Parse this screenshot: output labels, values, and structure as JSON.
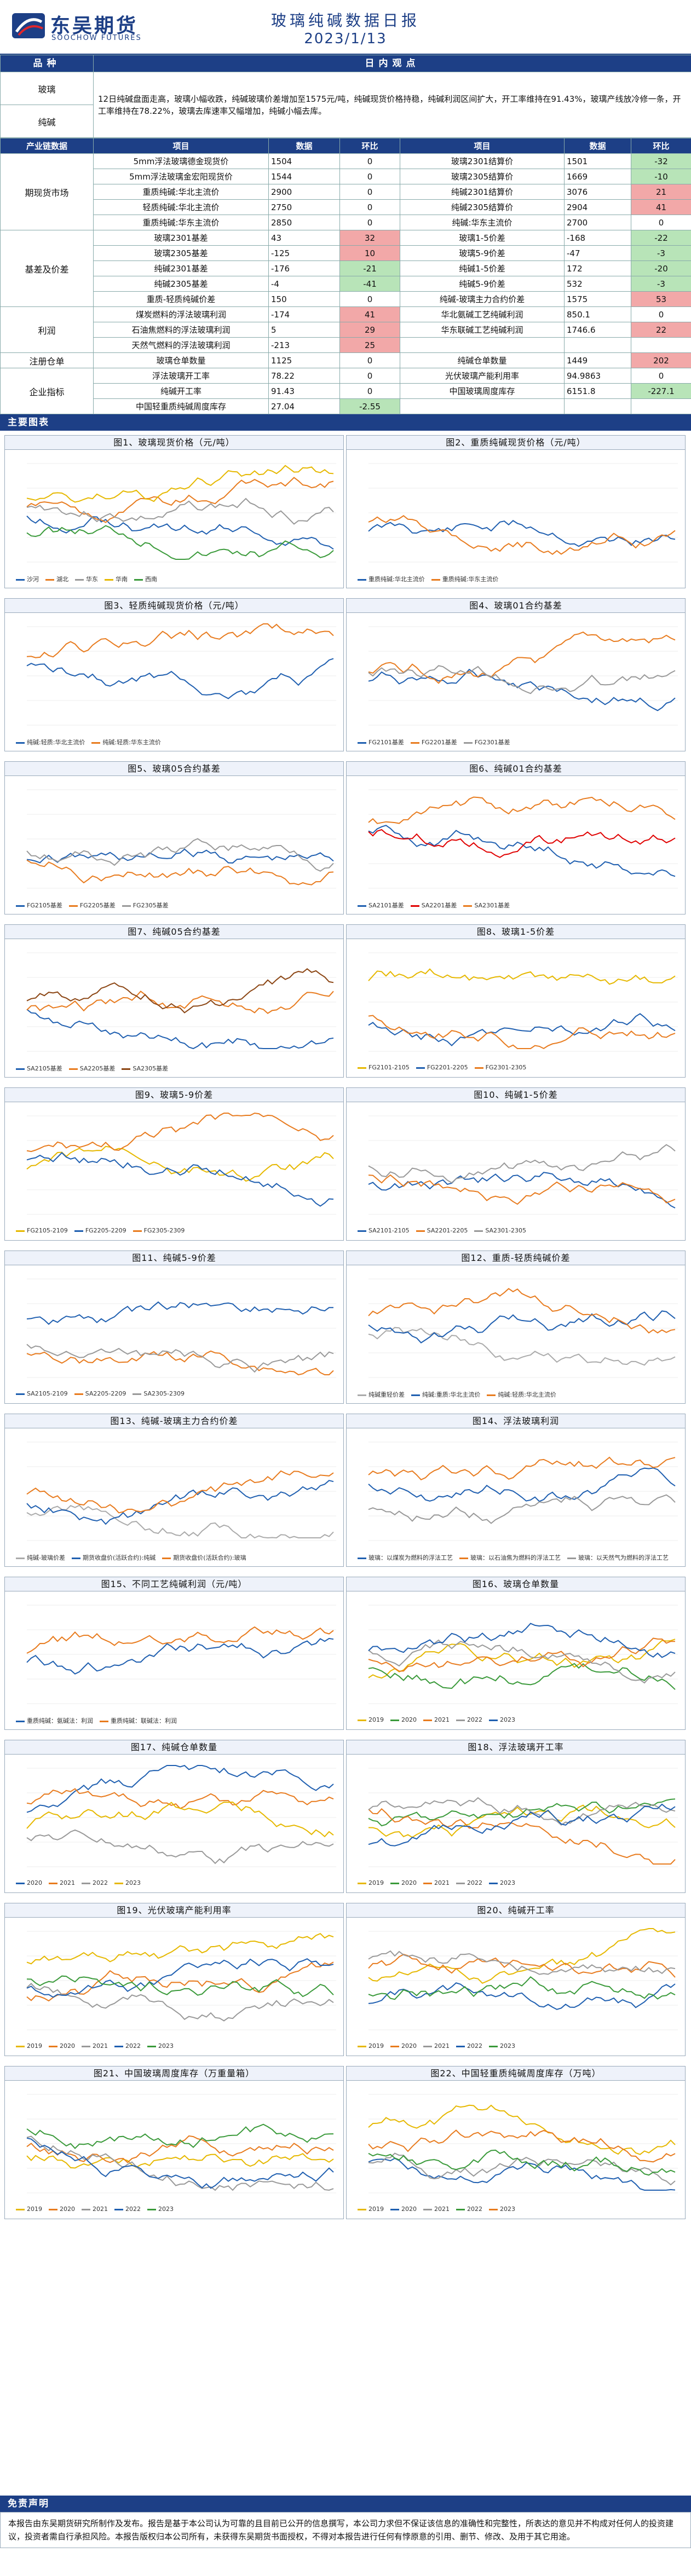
{
  "header": {
    "logo_cn": "东吴期货",
    "logo_en": "SOOCHOW FUTURES",
    "title": "玻璃纯碱数据日报",
    "date": "2023/1/13"
  },
  "varieties": {
    "bar_left": "品种",
    "bar_center": "日内观点",
    "glass_label": "玻璃",
    "soda_label": "纯碱",
    "view_text": "12日纯碱盘面走高，玻璃小幅收跌，纯碱玻璃价差增加至1575元/吨，纯碱现货价格持稳，纯碱利润区间扩大，开工率维持在91.43%，玻璃产线放冷修一条，开工率维持在78.22%，玻璃去库速率又幅增加，纯碱小幅去库。"
  },
  "table": {
    "headers": [
      "产业链数据",
      "项目",
      "数据",
      "环比",
      "项目",
      "数据",
      "环比"
    ],
    "groups": [
      {
        "label": "期现货市场",
        "rows": [
          {
            "i1": "5mm浮法玻璃德金现货价",
            "v1": "1504",
            "c1": "0",
            "c1s": "",
            "i2": "玻璃2301结算价",
            "v2": "1501",
            "c2": "-32",
            "c2s": "grn"
          },
          {
            "i1": "5mm浮法玻璃金宏阳现货价",
            "v1": "1544",
            "c1": "0",
            "c1s": "",
            "i2": "玻璃2305结算价",
            "v2": "1669",
            "c2": "-10",
            "c2s": "grn"
          },
          {
            "i1": "重质纯碱:华北主流价",
            "v1": "2900",
            "c1": "0",
            "c1s": "",
            "i2": "纯碱2301结算价",
            "v2": "3076",
            "c2": "21",
            "c2s": "red"
          },
          {
            "i1": "轻质纯碱:华北主流价",
            "v1": "2750",
            "c1": "0",
            "c1s": "",
            "i2": "纯碱2305结算价",
            "v2": "2904",
            "c2": "41",
            "c2s": "red"
          },
          {
            "i1": "重质纯碱:华东主流价",
            "v1": "2850",
            "c1": "0",
            "c1s": "",
            "i2": "纯碱:华东主流价",
            "v2": "2700",
            "c2": "0",
            "c2s": ""
          }
        ]
      },
      {
        "label": "基差及价差",
        "rows": [
          {
            "i1": "玻璃2301基差",
            "v1": "43",
            "c1": "32",
            "c1s": "red",
            "i2": "玻璃1-5价差",
            "v2": "-168",
            "c2": "-22",
            "c2s": "grn"
          },
          {
            "i1": "玻璃2305基差",
            "v1": "-125",
            "c1": "10",
            "c1s": "red",
            "i2": "玻璃5-9价差",
            "v2": "-47",
            "c2": "-3",
            "c2s": "grn"
          },
          {
            "i1": "纯碱2301基差",
            "v1": "-176",
            "c1": "-21",
            "c1s": "grn",
            "i2": "纯碱1-5价差",
            "v2": "172",
            "c2": "-20",
            "c2s": "grn"
          },
          {
            "i1": "纯碱2305基差",
            "v1": "-4",
            "c1": "-41",
            "c1s": "grn",
            "i2": "纯碱5-9价差",
            "v2": "532",
            "c2": "-3",
            "c2s": "grn"
          },
          {
            "i1": "重质-轻质纯碱价差",
            "v1": "150",
            "c1": "0",
            "c1s": "",
            "i2": "纯碱-玻璃主力合约价差",
            "v2": "1575",
            "c2": "53",
            "c2s": "red"
          }
        ]
      },
      {
        "label": "利润",
        "rows": [
          {
            "i1": "煤炭燃料的浮法玻璃利润",
            "v1": "-174",
            "c1": "41",
            "c1s": "red",
            "i2": "华北氨碱工艺纯碱利润",
            "v2": "850.1",
            "c2": "0",
            "c2s": ""
          },
          {
            "i1": "石油焦燃料的浮法玻璃利润",
            "v1": "5",
            "c1": "29",
            "c1s": "red",
            "i2": "华东联碱工艺纯碱利润",
            "v2": "1746.6",
            "c2": "22",
            "c2s": "red"
          },
          {
            "i1": "天然气燃料的浮法玻璃利润",
            "v1": "-213",
            "c1": "25",
            "c1s": "red",
            "i2": "",
            "v2": "",
            "c2": "",
            "c2s": ""
          }
        ]
      },
      {
        "label": "注册仓单",
        "rows": [
          {
            "i1": "玻璃仓单数量",
            "v1": "1125",
            "c1": "0",
            "c1s": "",
            "i2": "纯碱仓单数量",
            "v2": "1449",
            "c2": "202",
            "c2s": "red"
          }
        ]
      },
      {
        "label": "企业指标",
        "rows": [
          {
            "i1": "浮法玻璃开工率",
            "v1": "78.22",
            "c1": "0",
            "c1s": "",
            "i2": "光伏玻璃产能利用率",
            "v2": "94.9863",
            "c2": "0",
            "c2s": ""
          },
          {
            "i1": "纯碱开工率",
            "v1": "91.43",
            "c1": "0",
            "c1s": "",
            "i2": "中国玻璃周度库存",
            "v2": "6151.8",
            "c2": "-227.1",
            "c2s": "grn"
          },
          {
            "i1": "中国轻重质纯碱周度库存",
            "v1": "27.04",
            "c1": "-2.55",
            "c1s": "grn",
            "i2": "",
            "v2": "",
            "c2": "",
            "c2s": ""
          }
        ]
      }
    ]
  },
  "charts_bar": "主要图表",
  "charts": [
    {
      "title": "图1、玻璃现货价格（元/吨）",
      "legend": [
        "沙河",
        "湖北",
        "华东",
        "华南",
        "西南"
      ],
      "colors": [
        "#1f5fb0",
        "#e87b1e",
        "#999999",
        "#e6b800",
        "#3a9a3a"
      ]
    },
    {
      "title": "图2、重质纯碱现货价格（元/吨）",
      "legend": [
        "重质纯碱:华北主流价",
        "重质纯碱:华东主流价"
      ],
      "colors": [
        "#1f5fb0",
        "#e87b1e"
      ]
    },
    {
      "title": "图3、轻质纯碱现货价格（元/吨）",
      "legend": [
        "纯碱:轻质:华北主流价",
        "纯碱:轻质:华东主流价"
      ],
      "colors": [
        "#1f5fb0",
        "#e87b1e"
      ]
    },
    {
      "title": "图4、玻璃01合约基差",
      "legend": [
        "FG2101基差",
        "FG2201基差",
        "FG2301基差"
      ],
      "colors": [
        "#1f5fb0",
        "#e87b1e",
        "#999999"
      ]
    },
    {
      "title": "图5、玻璃05合约基差",
      "legend": [
        "FG2105基差",
        "FG2205基差",
        "FG2305基差"
      ],
      "colors": [
        "#1f5fb0",
        "#e87b1e",
        "#999999"
      ]
    },
    {
      "title": "图6、纯碱01合约基差",
      "legend": [
        "SA2101基差",
        "SA2201基差",
        "SA2301基差"
      ],
      "colors": [
        "#1f5fb0",
        "#e00000",
        "#e87b1e"
      ]
    },
    {
      "title": "图7、纯碱05合约基差",
      "legend": [
        "SA2105基差",
        "SA2205基差",
        "SA2305基差"
      ],
      "colors": [
        "#1f5fb0",
        "#e87b1e",
        "#8b4513"
      ]
    },
    {
      "title": "图8、玻璃1-5价差",
      "legend": [
        "FG2101-2105",
        "FG2201-2205",
        "FG2301-2305"
      ],
      "colors": [
        "#e6b800",
        "#1f5fb0",
        "#e87b1e"
      ]
    },
    {
      "title": "图9、玻璃5-9价差",
      "legend": [
        "FG2105-2109",
        "FG2205-2209",
        "FG2305-2309"
      ],
      "colors": [
        "#e6b800",
        "#1f5fb0",
        "#e87b1e"
      ]
    },
    {
      "title": "图10、纯碱1-5价差",
      "legend": [
        "SA2101-2105",
        "SA2201-2205",
        "SA2301-2305"
      ],
      "colors": [
        "#1f5fb0",
        "#e87b1e",
        "#999999"
      ]
    },
    {
      "title": "图11、纯碱5-9价差",
      "legend": [
        "SA2105-2109",
        "SA2205-2209",
        "SA2305-2309"
      ],
      "colors": [
        "#1f5fb0",
        "#e87b1e",
        "#999999"
      ]
    },
    {
      "title": "图12、重质-轻质纯碱价差",
      "legend": [
        "纯碱重轻价差",
        "纯碱:重质:华北主流价",
        "纯碱:轻质:华北主流价"
      ],
      "colors": [
        "#aaaaaa",
        "#1f5fb0",
        "#e87b1e"
      ]
    },
    {
      "title": "图13、纯碱-玻璃主力合约价差",
      "legend": [
        "纯碱-玻璃价差",
        "期货收盘价(活跃合约):纯碱",
        "期货收盘价(活跃合约):玻璃"
      ],
      "colors": [
        "#aaaaaa",
        "#1f5fb0",
        "#e87b1e"
      ]
    },
    {
      "title": "图14、浮法玻璃利润",
      "legend": [
        "玻璃：以煤炭为燃料的浮法工艺",
        "玻璃：以石油焦为燃料的浮法工艺",
        "玻璃：以天然气为燃料的浮法工艺"
      ],
      "colors": [
        "#1f5fb0",
        "#e87b1e",
        "#999999"
      ]
    },
    {
      "title": "图15、不同工艺纯碱利润（元/吨）",
      "legend": [
        "重质纯碱：氨碱法：利润",
        "重质纯碱：联碱法：利润"
      ],
      "colors": [
        "#1f5fb0",
        "#e87b1e"
      ]
    },
    {
      "title": "图16、玻璃仓单数量",
      "legend": [
        "2019",
        "2020",
        "2021",
        "2022",
        "2023"
      ],
      "colors": [
        "#e6b800",
        "#3a9a3a",
        "#e87b1e",
        "#999999",
        "#1f5fb0"
      ]
    },
    {
      "title": "图17、纯碱仓单数量",
      "legend": [
        "2020",
        "2021",
        "2022",
        "2023"
      ],
      "colors": [
        "#1f5fb0",
        "#e87b1e",
        "#999999",
        "#e6b800"
      ]
    },
    {
      "title": "图18、浮法玻璃开工率",
      "legend": [
        "2019",
        "2020",
        "2021",
        "2022",
        "2023"
      ],
      "colors": [
        "#e6b800",
        "#3a9a3a",
        "#e87b1e",
        "#999999",
        "#1f5fb0"
      ]
    },
    {
      "title": "图19、光伏玻璃产能利用率",
      "legend": [
        "2019",
        "2020",
        "2021",
        "2022",
        "2023"
      ],
      "colors": [
        "#e6b800",
        "#e87b1e",
        "#999999",
        "#1f5fb0",
        "#3a9a3a"
      ]
    },
    {
      "title": "图20、纯碱开工率",
      "legend": [
        "2019",
        "2020",
        "2021",
        "2022",
        "2023"
      ],
      "colors": [
        "#e6b800",
        "#e87b1e",
        "#999999",
        "#1f5fb0",
        "#3a9a3a"
      ]
    },
    {
      "title": "图21、中国玻璃周度库存（万重量箱）",
      "legend": [
        "2019",
        "2020",
        "2021",
        "2022",
        "2023"
      ],
      "colors": [
        "#e6b800",
        "#e87b1e",
        "#999999",
        "#1f5fb0",
        "#3a9a3a"
      ]
    },
    {
      "title": "图22、中国轻重质纯碱周度库存（万吨）",
      "legend": [
        "2019",
        "2020",
        "2021",
        "2022",
        "2023"
      ],
      "colors": [
        "#e6b800",
        "#1f5fb0",
        "#999999",
        "#3a9a3a",
        "#e87b1e"
      ]
    }
  ],
  "disclaimer": {
    "bar": "免责声明",
    "text": "本报告由东吴期货研究所制作及发布。报告是基于本公司认为可靠的且目前已公开的信息撰写，本公司力求但不保证该信息的准确性和完整性，所表达的意见并不构成对任何人的投资建议，投资者需自行承担风险。本报告版权归本公司所有，未获得东吴期货书面授权，不得对本报告进行任何有悖原意的引用、删节、修改、及用于其它用途。"
  }
}
